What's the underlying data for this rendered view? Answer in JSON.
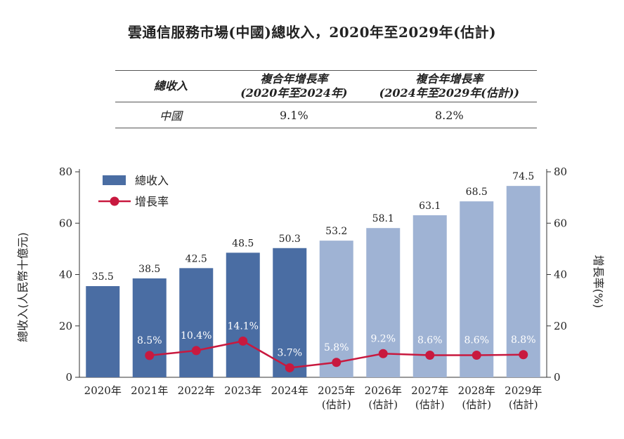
{
  "title": "雲通信服務市場(中國)總收入，2020年至2029年(估計)",
  "cagr_table": {
    "headers": [
      "總收入",
      "複合年增長率\n(2020年至2024年)",
      "複合年增長率\n(2024年至2029年(估計))"
    ],
    "rows": [
      {
        "label": "中國",
        "values": [
          "9.1%",
          "8.2%"
        ]
      }
    ]
  },
  "chart_data": {
    "type": "bar",
    "categories": [
      "2020年",
      "2021年",
      "2022年",
      "2023年",
      "2024年",
      "2025年\n(估計)",
      "2026年\n(估計)",
      "2027年\n(估計)",
      "2028年\n(估計)",
      "2029年\n(估計)"
    ],
    "series": [
      {
        "name": "總收入",
        "type": "bar",
        "axis": "left",
        "values": [
          35.5,
          38.5,
          42.5,
          48.5,
          50.3,
          53.2,
          58.1,
          63.1,
          68.5,
          74.5
        ],
        "labels": [
          "35.5",
          "38.5",
          "42.5",
          "48.5",
          "50.3",
          "53.2",
          "58.1",
          "63.1",
          "68.5",
          "74.5"
        ]
      },
      {
        "name": "增長率",
        "type": "line",
        "axis": "right",
        "values": [
          null,
          8.5,
          10.4,
          14.1,
          3.7,
          5.8,
          9.2,
          8.6,
          8.6,
          8.8
        ],
        "labels": [
          null,
          "8.5%",
          "10.4%",
          "14.1%",
          "3.7%",
          "5.8%",
          "9.2%",
          "8.6%",
          "8.6%",
          "8.8%"
        ]
      }
    ],
    "ylabel": "總收入(人民幣十億元)",
    "y2label": "增長率(%)",
    "ylim": [
      0,
      80
    ],
    "y2lim": [
      0,
      80
    ],
    "yticks": [
      0,
      20,
      40,
      60,
      80
    ],
    "legend": "top-left",
    "grid": false,
    "colors": {
      "actual": "#4a6da3",
      "estimated": "#9fb3d4",
      "line": "#c8193f"
    }
  }
}
